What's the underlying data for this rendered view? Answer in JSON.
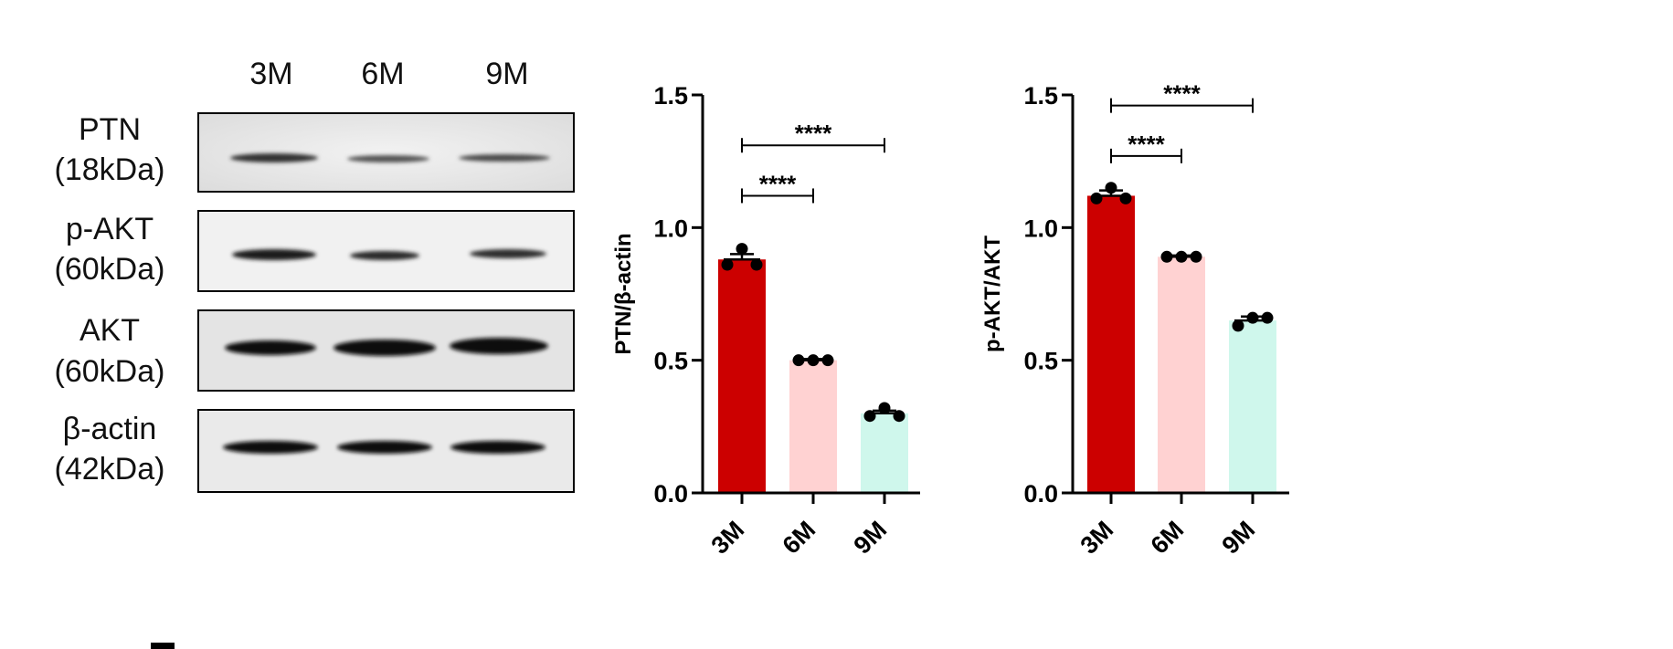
{
  "blot": {
    "lanes": [
      "3M",
      "6M",
      "9M"
    ],
    "rows": [
      {
        "name": "PTN",
        "size": "(18kDa)"
      },
      {
        "name": "p-AKT",
        "size": "(60kDa)"
      },
      {
        "name": "AKT",
        "size": "(60kDa)"
      },
      {
        "name": "β-actin",
        "size": "(42kDa)"
      }
    ]
  },
  "chart_data": [
    {
      "type": "bar",
      "title": "",
      "xlabel": "",
      "ylabel": "PTN/β-actin",
      "ylim": [
        0,
        1.5
      ],
      "yticks": [
        "0.0",
        "0.5",
        "1.0",
        "1.5"
      ],
      "yticks_values": [
        0,
        0.5,
        1.0,
        1.5
      ],
      "categories": [
        "3M",
        "6M",
        "9M"
      ],
      "values": [
        0.88,
        0.5,
        0.3
      ],
      "errors": [
        0.02,
        0.005,
        0.01
      ],
      "points": [
        [
          0.86,
          0.92,
          0.86
        ],
        [
          0.5,
          0.5,
          0.5
        ],
        [
          0.29,
          0.32,
          0.29
        ]
      ],
      "colors": [
        "#cc0000",
        "#ffd2d2",
        "#cff7ec"
      ],
      "significance": [
        {
          "from": 0,
          "to": 1,
          "y": 1.12,
          "label": "****"
        },
        {
          "from": 0,
          "to": 2,
          "y": 1.31,
          "label": "****"
        }
      ]
    },
    {
      "type": "bar",
      "title": "",
      "xlabel": "",
      "ylabel": "p-AKT/AKT",
      "ylim": [
        0,
        1.5
      ],
      "yticks": [
        "0.0",
        "0.5",
        "1.0",
        "1.5"
      ],
      "yticks_values": [
        0,
        0.5,
        1.0,
        1.5
      ],
      "categories": [
        "3M",
        "6M",
        "9M"
      ],
      "values": [
        1.12,
        0.89,
        0.65
      ],
      "errors": [
        0.02,
        0.005,
        0.015
      ],
      "points": [
        [
          1.11,
          1.15,
          1.11
        ],
        [
          0.89,
          0.89,
          0.89
        ],
        [
          0.63,
          0.66,
          0.66
        ]
      ],
      "colors": [
        "#cc0000",
        "#ffd2d2",
        "#cff7ec"
      ],
      "significance": [
        {
          "from": 0,
          "to": 1,
          "y": 1.27,
          "label": "****"
        },
        {
          "from": 0,
          "to": 2,
          "y": 1.46,
          "label": "****"
        }
      ]
    }
  ]
}
